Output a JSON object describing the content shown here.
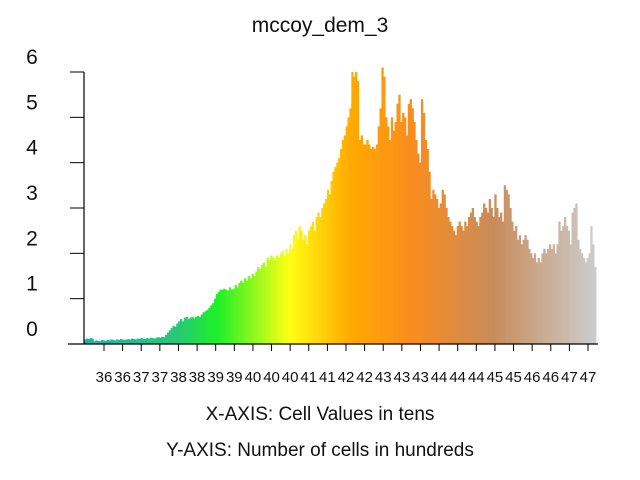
{
  "chart_data": {
    "type": "bar",
    "title": "mccoy_dem_3",
    "xaxis_caption": "X-AXIS: Cell Values in tens",
    "yaxis_caption": "Y-AXIS: Number of cells in hundreds",
    "y_tick_labels": [
      "0",
      "1",
      "2",
      "3",
      "4",
      "5",
      "6"
    ],
    "x_tick_labels": [
      "36",
      "36",
      "37",
      "37",
      "38",
      "38",
      "39",
      "39",
      "40",
      "40",
      "40",
      "41",
      "41",
      "42",
      "42",
      "43",
      "43",
      "43",
      "44",
      "44",
      "44",
      "45",
      "45",
      "46",
      "46",
      "47",
      "47"
    ],
    "ylim": [
      0,
      6
    ],
    "grid": false,
    "legend": "none",
    "values": [
      0.1,
      0.12,
      0.11,
      0.13,
      0.12,
      0.06,
      0.08,
      0.07,
      0.06,
      0.09,
      0.08,
      0.07,
      0.09,
      0.08,
      0.1,
      0.09,
      0.08,
      0.1,
      0.09,
      0.11,
      0.1,
      0.09,
      0.1,
      0.11,
      0.1,
      0.12,
      0.11,
      0.1,
      0.12,
      0.11,
      0.13,
      0.12,
      0.11,
      0.13,
      0.12,
      0.14,
      0.13,
      0.12,
      0.14,
      0.15,
      0.14,
      0.16,
      0.15,
      0.2,
      0.25,
      0.3,
      0.35,
      0.4,
      0.38,
      0.45,
      0.5,
      0.55,
      0.5,
      0.58,
      0.6,
      0.55,
      0.58,
      0.6,
      0.57,
      0.6,
      0.62,
      0.6,
      0.65,
      0.7,
      0.72,
      0.75,
      0.8,
      0.85,
      0.9,
      1.0,
      1.1,
      1.15,
      1.2,
      1.2,
      1.22,
      1.2,
      1.18,
      1.25,
      1.2,
      1.22,
      1.3,
      1.25,
      1.35,
      1.4,
      1.35,
      1.45,
      1.4,
      1.5,
      1.45,
      1.55,
      1.5,
      1.6,
      1.7,
      1.65,
      1.75,
      1.8,
      1.7,
      1.9,
      1.85,
      1.95,
      1.9,
      1.85,
      1.95,
      1.9,
      2.0,
      2.05,
      1.95,
      2.1,
      2.0,
      2.2,
      2.1,
      2.4,
      2.5,
      2.3,
      2.6,
      2.5,
      2.3,
      2.4,
      2.2,
      2.5,
      2.6,
      2.7,
      2.5,
      2.8,
      2.9,
      2.8,
      3.0,
      3.1,
      3.2,
      3.4,
      3.3,
      3.6,
      3.8,
      3.9,
      4.0,
      4.1,
      4.3,
      4.5,
      4.6,
      4.8,
      5.0,
      5.2,
      6.0,
      5.9,
      6.0,
      5.8,
      4.5,
      4.6,
      4.4,
      4.4,
      4.5,
      4.4,
      4.3,
      4.35,
      4.3,
      4.4,
      4.8,
      5.2,
      6.1,
      5.9,
      5.0,
      4.8,
      4.5,
      5.0,
      4.7,
      4.9,
      5.3,
      5.5,
      4.9,
      5.1,
      5.0,
      4.6,
      5.3,
      5.4,
      5.2,
      4.9,
      4.5,
      4.2,
      4.0,
      5.4,
      5.1,
      4.5,
      4.3,
      3.8,
      3.2,
      3.4,
      3.3,
      3.2,
      3.0,
      3.1,
      3.4,
      3.3,
      3.0,
      2.8,
      2.7,
      2.6,
      2.5,
      2.4,
      2.6,
      2.7,
      2.6,
      2.5,
      2.7,
      2.6,
      2.8,
      2.9,
      3.0,
      2.8,
      2.7,
      2.6,
      2.8,
      2.9,
      3.1,
      3.0,
      2.9,
      3.2,
      3.0,
      2.8,
      3.3,
      3.0,
      2.8,
      2.9,
      2.7,
      3.5,
      3.4,
      3.3,
      3.0,
      2.7,
      2.5,
      2.6,
      2.3,
      2.4,
      2.2,
      2.3,
      2.4,
      2.3,
      2.1,
      2.0,
      1.9,
      2.0,
      1.8,
      1.9,
      1.8,
      2.0,
      2.1,
      2.0,
      2.1,
      2.2,
      2.1,
      2.2,
      2.0,
      2.2,
      2.7,
      2.5,
      2.6,
      2.8,
      2.6,
      2.5,
      2.2,
      2.9,
      3.0,
      3.1,
      2.3,
      2.1,
      2.0,
      1.9,
      1.8,
      1.9,
      2.0,
      2.6,
      2.2,
      1.7
    ]
  }
}
